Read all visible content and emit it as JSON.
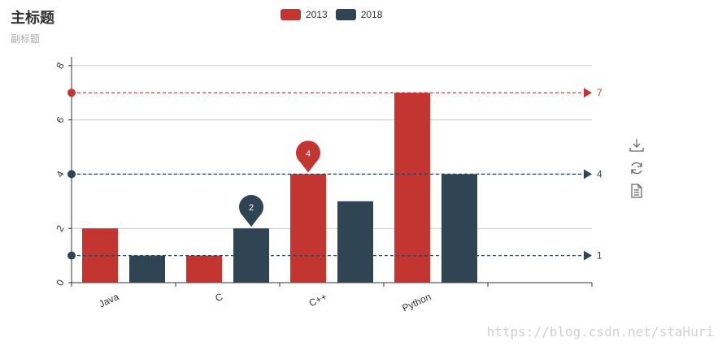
{
  "title": "主标题",
  "subtitle": "副标题",
  "legend": [
    {
      "name": "2013",
      "color": "#c23531"
    },
    {
      "name": "2018",
      "color": "#2f4554"
    }
  ],
  "toolbox": [
    "download-icon",
    "refresh-icon",
    "data-view-icon"
  ],
  "watermark": "https://blog.csdn.net/staHuri",
  "chart_data": {
    "type": "bar",
    "title": "主标题",
    "subtitle": "副标题",
    "categories": [
      "Java",
      "C",
      "C++",
      "Python",
      ""
    ],
    "series": [
      {
        "name": "2013",
        "color": "#c23531",
        "values": [
          2,
          1,
          4,
          7,
          null
        ],
        "markPoint": [
          {
            "category": "C++",
            "value": 4
          }
        ],
        "markLine": [
          {
            "value": 7
          }
        ]
      },
      {
        "name": "2018",
        "color": "#2f4554",
        "values": [
          1,
          2,
          3,
          4,
          null
        ],
        "markPoint": [
          {
            "category": "C",
            "value": 2
          }
        ],
        "markLine": [
          {
            "value": 4
          },
          {
            "value": 1
          }
        ]
      }
    ],
    "ylim": [
      0,
      8
    ],
    "yticks": [
      0,
      2,
      4,
      6,
      8
    ],
    "grid": true,
    "legend_position": "top-center"
  }
}
